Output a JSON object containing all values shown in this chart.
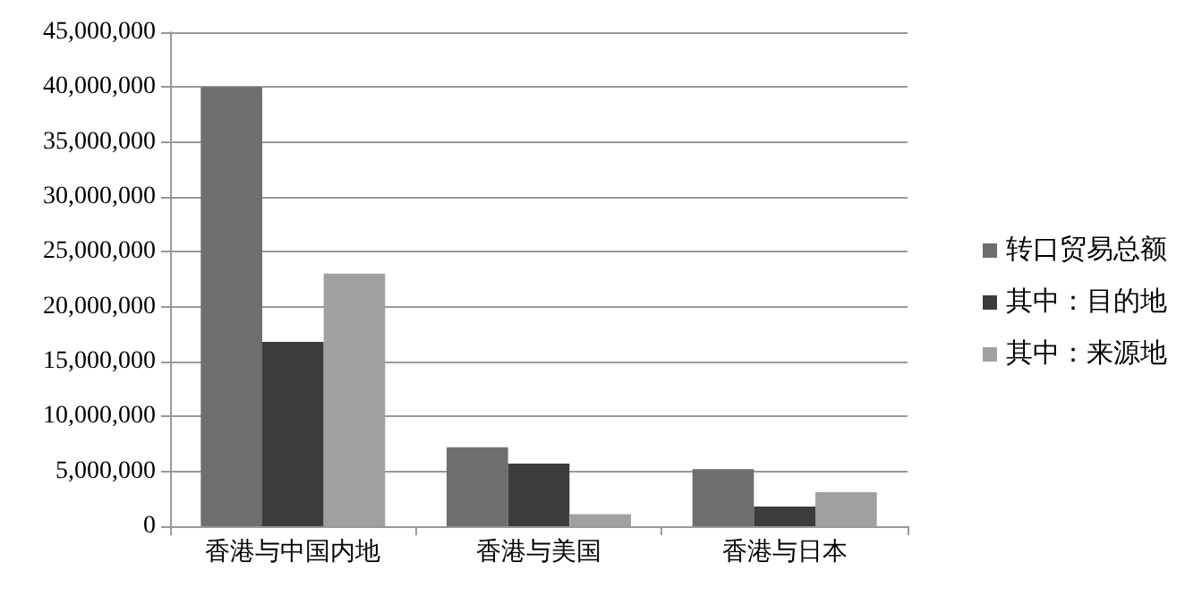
{
  "chart_data": {
    "type": "bar",
    "categories": [
      "香港与中国内地",
      "香港与美国",
      "香港与日本"
    ],
    "series": [
      {
        "name": "转口贸易总额",
        "color": "#6e6e6e",
        "values": [
          40000000,
          7200000,
          5200000
        ]
      },
      {
        "name": "其中：目的地",
        "color": "#3c3c3c",
        "values": [
          16800000,
          5700000,
          1800000
        ]
      },
      {
        "name": "其中：来源地",
        "color": "#a0a0a0",
        "values": [
          23000000,
          1100000,
          3100000
        ]
      }
    ],
    "ylim": [
      0,
      45000000
    ],
    "yticks": [
      0,
      {
        "value": 5000000,
        "label": "5,000,000"
      },
      {
        "value": 10000000,
        "label": "10,000,000"
      },
      {
        "value": 15000000,
        "label": "15,000,000"
      },
      {
        "value": 20000000,
        "label": "20,000,000"
      },
      {
        "value": 25000000,
        "label": "25,000,000"
      },
      {
        "value": 30000000,
        "label": "30,000,000"
      },
      {
        "value": 35000000,
        "label": "35,000,000"
      },
      {
        "value": 40000000,
        "label": "40,000,000"
      },
      {
        "value": 45000000,
        "label": "45,000,000"
      }
    ],
    "grid": "y",
    "legend": "right"
  }
}
